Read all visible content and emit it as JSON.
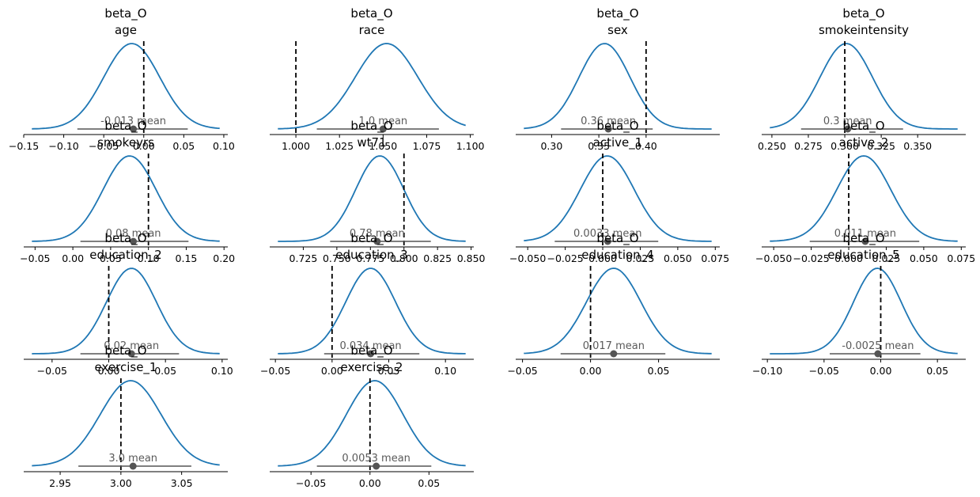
{
  "colors": {
    "density": "#1f77b4",
    "interval": "#555555",
    "point": "#555555",
    "ref_line": "#000000",
    "axis": "#000000"
  },
  "chart_data": [
    {
      "type": "area",
      "title": "beta_O",
      "subtitle": "age",
      "xlim": [
        -0.15,
        0.105
      ],
      "ticks": [
        -0.15,
        -0.1,
        -0.05,
        0.0,
        0.05,
        0.1
      ],
      "tick_labels": [
        "−0.15",
        "−0.10",
        "−0.05",
        "0.00",
        "0.05",
        "0.10"
      ],
      "mean": -0.013,
      "mean_label": "-0.013 mean",
      "hdi": [
        -0.083,
        0.055
      ],
      "ref_line": 0.0,
      "density_center": -0.015,
      "density_sd": 0.035
    },
    {
      "type": "area",
      "title": "beta_O",
      "subtitle": "race",
      "xlim": [
        0.985,
        1.102
      ],
      "ticks": [
        1.0,
        1.025,
        1.05,
        1.075,
        1.1
      ],
      "tick_labels": [
        "1.000",
        "1.025",
        "1.050",
        "1.075",
        "1.100"
      ],
      "mean": 1.05,
      "mean_label": "1.0 mean",
      "hdi": [
        1.012,
        1.082
      ],
      "ref_line": 1.0,
      "density_center": 1.052,
      "density_sd": 0.018
    },
    {
      "type": "area",
      "title": "beta_O",
      "subtitle": "sex",
      "xlim": [
        0.262,
        0.478
      ],
      "ticks": [
        0.3,
        0.35,
        0.4
      ],
      "tick_labels": [
        "0.30",
        "0.35",
        "0.40"
      ],
      "mean": 0.36,
      "mean_label": "0.36 mean",
      "hdi": [
        0.31,
        0.407
      ],
      "ref_line": 0.4,
      "density_center": 0.356,
      "density_sd": 0.027
    },
    {
      "type": "area",
      "title": "beta_O",
      "subtitle": "smokeintensity",
      "xlim": [
        0.243,
        0.383
      ],
      "ticks": [
        0.25,
        0.275,
        0.3,
        0.325,
        0.35
      ],
      "tick_labels": [
        "0.250",
        "0.275",
        "0.300",
        "0.325",
        "0.350"
      ],
      "mean": 0.302,
      "mean_label": "0.3 mean",
      "hdi": [
        0.27,
        0.34
      ],
      "ref_line": 0.3,
      "density_center": 0.301,
      "density_sd": 0.018
    },
    {
      "type": "area",
      "title": "beta_O",
      "subtitle": "smokeyrs",
      "xlim": [
        -0.065,
        0.205
      ],
      "ticks": [
        -0.05,
        0.0,
        0.05,
        0.1,
        0.15,
        0.2
      ],
      "tick_labels": [
        "−0.05",
        "0.00",
        "0.05",
        "0.10",
        "0.15",
        "0.20"
      ],
      "mean": 0.08,
      "mean_label": "0.08 mean",
      "hdi": [
        0.01,
        0.153
      ],
      "ref_line": 0.1,
      "density_center": 0.075,
      "density_sd": 0.035
    },
    {
      "type": "area",
      "title": "beta_O",
      "subtitle": "wt71",
      "xlim": [
        0.7,
        0.852
      ],
      "ticks": [
        0.725,
        0.75,
        0.775,
        0.8,
        0.825,
        0.85
      ],
      "tick_labels": [
        "0.725",
        "0.750",
        "0.775",
        "0.800",
        "0.825",
        "0.850"
      ],
      "mean": 0.78,
      "mean_label": "0.78 mean",
      "hdi": [
        0.745,
        0.82
      ],
      "ref_line": 0.8,
      "density_center": 0.782,
      "density_sd": 0.018
    },
    {
      "type": "area",
      "title": "beta_O",
      "subtitle": "active_1",
      "xlim": [
        -0.058,
        0.078
      ],
      "ticks": [
        -0.05,
        -0.025,
        0.0,
        0.025,
        0.05,
        0.075
      ],
      "tick_labels": [
        "−0.050",
        "−0.025",
        "0.000",
        "0.025",
        "0.050",
        "0.075"
      ],
      "mean": 0.0033,
      "mean_label": "0.0033 mean",
      "hdi": [
        -0.032,
        0.037
      ],
      "ref_line": 0.0,
      "density_center": 0.003,
      "density_sd": 0.018
    },
    {
      "type": "area",
      "title": "beta_O",
      "subtitle": "active_2",
      "xlim": [
        -0.058,
        0.078
      ],
      "ticks": [
        -0.05,
        -0.025,
        0.0,
        0.025,
        0.05,
        0.075
      ],
      "tick_labels": [
        "−0.050",
        "−0.025",
        "0.000",
        "0.025",
        "0.050",
        "0.075"
      ],
      "mean": 0.011,
      "mean_label": "0.011 mean",
      "hdi": [
        -0.026,
        0.047
      ],
      "ref_line": 0.0,
      "density_center": 0.01,
      "density_sd": 0.018
    },
    {
      "type": "area",
      "title": "beta_O",
      "subtitle": "education_2",
      "xlim": [
        -0.075,
        0.105
      ],
      "ticks": [
        -0.05,
        0.0,
        0.05,
        0.1
      ],
      "tick_labels": [
        "−0.05",
        "0.00",
        "0.05",
        "0.10"
      ],
      "mean": 0.02,
      "mean_label": "0.02 mean",
      "hdi": [
        -0.025,
        0.062
      ],
      "ref_line": 0.0,
      "density_center": 0.02,
      "density_sd": 0.022
    },
    {
      "type": "area",
      "title": "beta_O",
      "subtitle": "education_3",
      "xlim": [
        -0.055,
        0.125
      ],
      "ticks": [
        -0.05,
        0.0,
        0.05,
        0.1
      ],
      "tick_labels": [
        "−0.05",
        "0.00",
        "0.05",
        "0.10"
      ],
      "mean": 0.034,
      "mean_label": "0.034 mean",
      "hdi": [
        -0.007,
        0.077
      ],
      "ref_line": 0.0,
      "density_center": 0.034,
      "density_sd": 0.022
    },
    {
      "type": "area",
      "title": "beta_O",
      "subtitle": "education_4",
      "xlim": [
        -0.055,
        0.095
      ],
      "ticks": [
        -0.05,
        0.0,
        0.05
      ],
      "tick_labels": [
        "−0.05",
        "0.00",
        "0.05"
      ],
      "mean": 0.017,
      "mean_label": "0.017 mean",
      "hdi": [
        -0.022,
        0.055
      ],
      "ref_line": 0.0,
      "density_center": 0.017,
      "density_sd": 0.02
    },
    {
      "type": "area",
      "title": "beta_O",
      "subtitle": "education_5",
      "xlim": [
        -0.105,
        0.075
      ],
      "ticks": [
        -0.1,
        -0.05,
        0.0,
        0.05
      ],
      "tick_labels": [
        "−0.10",
        "−0.05",
        "0.00",
        "0.05"
      ],
      "mean": -0.0025,
      "mean_label": "-0.0025 mean",
      "hdi": [
        -0.045,
        0.035
      ],
      "ref_line": 0.0,
      "density_center": -0.003,
      "density_sd": 0.021
    },
    {
      "type": "area",
      "title": "beta_O",
      "subtitle": "exercise_1",
      "xlim": [
        2.92,
        3.088
      ],
      "ticks": [
        2.95,
        3.0,
        3.05
      ],
      "tick_labels": [
        "2.95",
        "3.00",
        "3.05"
      ],
      "mean": 3.01,
      "mean_label": "3.0 mean",
      "hdi": [
        2.965,
        3.058
      ],
      "ref_line": 3.0,
      "density_center": 3.008,
      "density_sd": 0.025
    },
    {
      "type": "area",
      "title": "beta_O",
      "subtitle": "exercise_2",
      "xlim": [
        -0.085,
        0.088
      ],
      "ticks": [
        -0.05,
        0.0,
        0.05
      ],
      "tick_labels": [
        "−0.05",
        "0.00",
        "0.05"
      ],
      "mean": 0.0053,
      "mean_label": "0.0053 mean",
      "hdi": [
        -0.045,
        0.052
      ],
      "ref_line": 0.0,
      "density_center": 0.004,
      "density_sd": 0.024
    }
  ]
}
